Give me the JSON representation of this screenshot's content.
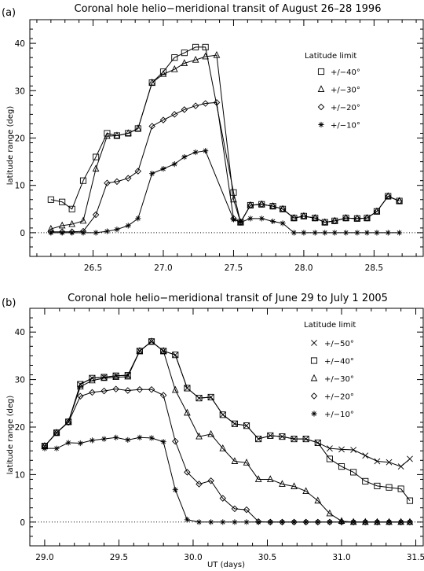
{
  "chart_data": [
    {
      "type": "line",
      "tag": "(a)",
      "title": "Coronal hole helio−meridional transit of August 26–28 1996",
      "xlabel": "",
      "ylabel": "latitude range (deg)",
      "xlim": [
        26.05,
        28.85
      ],
      "ylim": [
        -5,
        45
      ],
      "xticks": [
        26.5,
        27.0,
        27.5,
        28.0,
        28.5
      ],
      "xtick_labels": [
        "26.5",
        "27.0",
        "27.5",
        "28.0",
        "28.5"
      ],
      "yticks": [
        0,
        10,
        20,
        30,
        40
      ],
      "ytick_labels": [
        "0",
        "10",
        "20",
        "30",
        "40"
      ],
      "zero_line": "dotted",
      "legend_title": "Latitude limit",
      "legend_position": "right",
      "series": [
        {
          "name": "+/−40°",
          "marker": "square",
          "x": [
            26.2,
            26.28,
            26.35,
            26.43,
            26.52,
            26.6,
            26.67,
            26.75,
            26.82,
            26.92,
            27.0,
            27.08,
            27.15,
            27.23,
            27.3,
            27.38,
            27.5,
            27.55,
            27.62,
            27.7,
            27.78,
            27.85,
            27.93,
            28.0,
            28.08,
            28.15,
            28.22,
            28.3,
            28.38,
            28.45,
            28.52,
            28.6,
            28.68
          ],
          "y": [
            7,
            6.5,
            5,
            11,
            16,
            21,
            20.5,
            21,
            22,
            31.7,
            34,
            37,
            38,
            39.2,
            39.2,
            null,
            8.5,
            2.2,
            5.8,
            6,
            5.6,
            5,
            3.1,
            3.5,
            3.1,
            2.2,
            2.5,
            3.1,
            3,
            3.1,
            4.5,
            7.7,
            6.7
          ]
        },
        {
          "name": "+/−30°",
          "marker": "triangle",
          "x": [
            26.2,
            26.28,
            26.35,
            26.43,
            26.52,
            26.6,
            26.67,
            26.75,
            26.82,
            26.92,
            27.0,
            27.08,
            27.15,
            27.23,
            27.3,
            27.38,
            27.5,
            27.55,
            27.62,
            27.7,
            27.78,
            27.85,
            27.93,
            28.0,
            28.08,
            28.15,
            28.22,
            28.3,
            28.38,
            28.45,
            28.52,
            28.6,
            28.68
          ],
          "y": [
            0.8,
            1.5,
            1.8,
            2.5,
            13.5,
            20.4,
            20.5,
            21,
            22,
            31.7,
            33.5,
            34.5,
            35.8,
            36.5,
            37.2,
            37.5,
            7,
            2.2,
            5.8,
            6,
            5.6,
            5,
            3.1,
            3.5,
            3.1,
            2.2,
            2.5,
            3.1,
            3,
            3.1,
            4.5,
            7.7,
            6.7
          ]
        },
        {
          "name": "+/−20°",
          "marker": "diamond",
          "x": [
            26.2,
            26.28,
            26.35,
            26.43,
            26.52,
            26.6,
            26.67,
            26.75,
            26.82,
            26.92,
            27.0,
            27.08,
            27.15,
            27.23,
            27.3,
            27.38,
            27.5,
            27.55,
            27.62,
            27.7,
            27.78,
            27.85,
            27.93,
            28.0,
            28.08,
            28.15,
            28.22,
            28.3,
            28.38,
            28.45,
            28.52,
            28.6,
            28.68
          ],
          "y": [
            0.2,
            0.2,
            0.2,
            0.3,
            3.8,
            10.5,
            10.8,
            11.5,
            13,
            22.5,
            23.8,
            25,
            26,
            26.8,
            27.3,
            27.5,
            3,
            2.2,
            5.8,
            6,
            5.6,
            5,
            3.1,
            3.5,
            3.1,
            2.2,
            2.5,
            3.1,
            3,
            3.1,
            4.5,
            7.7,
            6.7
          ]
        },
        {
          "name": "+/−10°",
          "marker": "asterisk",
          "x": [
            26.2,
            26.28,
            26.35,
            26.43,
            26.52,
            26.6,
            26.67,
            26.75,
            26.82,
            26.92,
            27.0,
            27.08,
            27.15,
            27.23,
            27.3,
            27.38,
            27.5,
            27.55,
            27.62,
            27.7,
            27.78,
            27.85,
            27.93,
            28.0,
            28.08,
            28.15,
            28.22,
            28.3,
            28.38,
            28.45,
            28.52,
            28.6,
            28.68
          ],
          "y": [
            0,
            0,
            0,
            0,
            0,
            0.3,
            0.7,
            1.5,
            3,
            12.5,
            13.5,
            14.5,
            16,
            17,
            17.3,
            null,
            2.8,
            2.2,
            3,
            3,
            2.4,
            2,
            0,
            0,
            0,
            0,
            0,
            0,
            0,
            0,
            0,
            0,
            0
          ]
        }
      ]
    },
    {
      "type": "line",
      "tag": "(b)",
      "title": "Coronal hole helio−meridional transit of June 29 to July 1 2005",
      "xlabel": "UT (days)",
      "ylabel": "latitude range (deg)",
      "xlim": [
        28.9,
        31.55
      ],
      "ylim": [
        -5,
        45
      ],
      "xticks": [
        29.0,
        29.5,
        30.0,
        30.5,
        31.0,
        31.5
      ],
      "xtick_labels": [
        "29.0",
        "29.5",
        "30.0",
        "30.5",
        "31.0",
        "31.5"
      ],
      "yticks": [
        0,
        10,
        20,
        30,
        40
      ],
      "ytick_labels": [
        "0",
        "10",
        "20",
        "30",
        "40"
      ],
      "zero_line": "dotted",
      "legend_title": "Latitude limit",
      "legend_position": "right",
      "series": [
        {
          "name": "+/−50°",
          "marker": "x",
          "x": [
            29.0,
            29.08,
            29.16,
            29.24,
            29.32,
            29.4,
            29.48,
            29.56,
            29.64,
            29.72,
            29.8,
            29.88,
            29.96,
            30.04,
            30.12,
            30.2,
            30.28,
            30.36,
            30.44,
            30.52,
            30.6,
            30.68,
            30.76,
            30.84,
            30.92,
            31.0,
            31.08,
            31.16,
            31.24,
            31.32,
            31.4,
            31.46
          ],
          "y": [
            16,
            18.8,
            21.1,
            29,
            30.3,
            30.5,
            30.8,
            30.9,
            36,
            38,
            36,
            35.2,
            28.2,
            26.1,
            26.3,
            22.6,
            20.7,
            20.3,
            17.5,
            18.2,
            18,
            17.5,
            17.5,
            16.7,
            15.5,
            15.3,
            15.2,
            14,
            12.8,
            12.6,
            11.7,
            13.3
          ]
        },
        {
          "name": "+/−40°",
          "marker": "square",
          "x": [
            29.0,
            29.08,
            29.16,
            29.24,
            29.32,
            29.4,
            29.48,
            29.56,
            29.64,
            29.72,
            29.8,
            29.88,
            29.96,
            30.04,
            30.12,
            30.2,
            30.28,
            30.36,
            30.44,
            30.52,
            30.6,
            30.68,
            30.76,
            30.84,
            30.92,
            31.0,
            31.08,
            31.16,
            31.24,
            31.32,
            31.4,
            31.46
          ],
          "y": [
            16,
            18.8,
            21.1,
            29,
            30.3,
            30.5,
            30.8,
            30.9,
            36,
            38,
            36,
            35.2,
            28.2,
            26.1,
            26.3,
            22.6,
            20.7,
            20.3,
            17.5,
            18.2,
            18,
            17.5,
            17.5,
            16.7,
            13.3,
            11.7,
            10.5,
            8.6,
            7.6,
            7.3,
            7,
            4.5
          ]
        },
        {
          "name": "+/−30°",
          "marker": "triangle",
          "x": [
            29.0,
            29.08,
            29.16,
            29.24,
            29.32,
            29.4,
            29.48,
            29.56,
            29.64,
            29.72,
            29.8,
            29.88,
            29.96,
            30.04,
            30.12,
            30.2,
            30.28,
            30.36,
            30.44,
            30.52,
            30.6,
            30.68,
            30.76,
            30.84,
            30.92,
            31.0,
            31.08,
            31.16,
            31.24,
            31.32,
            31.4,
            31.46
          ],
          "y": [
            16,
            18.8,
            21.1,
            28.5,
            29.8,
            30.3,
            30.5,
            30.6,
            36,
            38,
            36,
            27.8,
            23,
            18,
            18.5,
            15.5,
            12.8,
            12.5,
            9,
            9,
            8,
            7.5,
            6.5,
            4.5,
            1.8,
            0.2,
            0,
            0,
            0,
            0,
            0,
            0
          ]
        },
        {
          "name": "+/−20°",
          "marker": "diamond",
          "x": [
            29.0,
            29.08,
            29.16,
            29.24,
            29.32,
            29.4,
            29.48,
            29.56,
            29.64,
            29.72,
            29.8,
            29.88,
            29.96,
            30.04,
            30.12,
            30.2,
            30.28,
            30.36,
            30.44,
            30.52,
            30.6,
            30.68,
            30.76,
            30.84,
            30.92,
            31.0,
            31.08,
            31.16,
            31.24,
            31.32,
            31.4,
            31.46
          ],
          "y": [
            16,
            18.8,
            21,
            26.5,
            27.3,
            27.6,
            28,
            27.7,
            27.9,
            27.9,
            26.7,
            17,
            10.5,
            8,
            8.7,
            5,
            2.8,
            2.6,
            0.1,
            0,
            0,
            0,
            0,
            0,
            0,
            0,
            0,
            0,
            0,
            0,
            0,
            0
          ]
        },
        {
          "name": "+/−10°",
          "marker": "asterisk",
          "x": [
            29.0,
            29.08,
            29.16,
            29.24,
            29.32,
            29.4,
            29.48,
            29.56,
            29.64,
            29.72,
            29.8,
            29.88,
            29.96,
            30.04,
            30.12,
            30.2,
            30.28,
            30.36,
            30.44,
            30.52,
            30.6,
            30.68,
            30.76,
            30.84,
            30.92,
            31.0,
            31.08,
            31.16,
            31.24,
            31.32,
            31.4,
            31.46
          ],
          "y": [
            15.5,
            15.5,
            16.7,
            16.6,
            17.2,
            17.5,
            17.8,
            17.3,
            17.8,
            17.7,
            16.9,
            6.8,
            0.5,
            0,
            0,
            0,
            0,
            0,
            0,
            0,
            0,
            0,
            0,
            0,
            0,
            0,
            0,
            0,
            0,
            0,
            0,
            0
          ]
        }
      ]
    }
  ]
}
